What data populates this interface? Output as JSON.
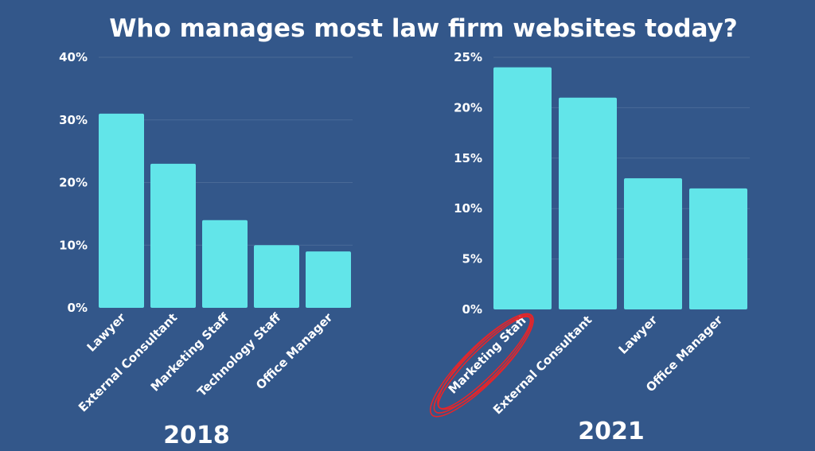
{
  "title": "Who manages most law firm websites today?",
  "colors": {
    "background": "#33578a",
    "bar": "#62e5e9",
    "text": "#ffffff",
    "highlight": "#e3262b"
  },
  "chart_data": [
    {
      "type": "bar",
      "xlabel": "2018",
      "categories": [
        "Lawyer",
        "External Consultant",
        "Marketing Staff",
        "Technology Staff",
        "Office Manager"
      ],
      "values": [
        31,
        23,
        14,
        10,
        9
      ],
      "ylim": [
        0,
        40
      ],
      "yticks": [
        "0%",
        "10%",
        "20%",
        "30%",
        "40%"
      ],
      "grid": true
    },
    {
      "type": "bar",
      "xlabel": "2021",
      "categories": [
        "Marketing Staff",
        "External Consultant",
        "Lawyer",
        "Office Manager"
      ],
      "values": [
        24,
        21,
        13,
        12
      ],
      "ylim": [
        0,
        25
      ],
      "yticks": [
        "0%",
        "5%",
        "10%",
        "15%",
        "20%",
        "25%"
      ],
      "grid": true,
      "highlighted_category": "Marketing Staff"
    }
  ]
}
